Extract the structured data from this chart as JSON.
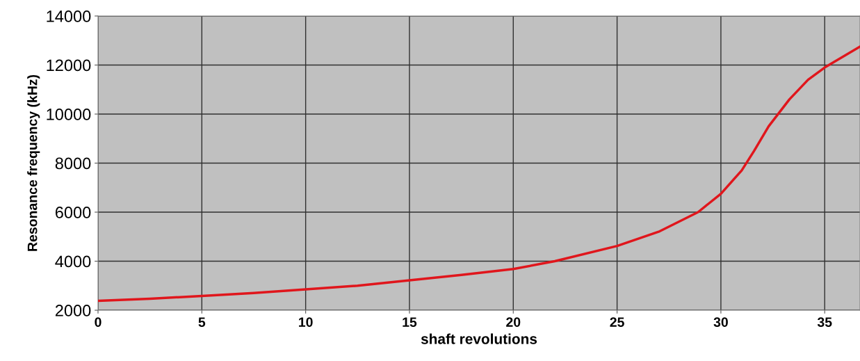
{
  "chart_data": {
    "type": "line",
    "xlabel": "shaft revolutions",
    "ylabel": "Resonance frequency (kHz)",
    "x": [
      0,
      2.5,
      5,
      7.5,
      10,
      12.5,
      15,
      17.5,
      20,
      22,
      25,
      27,
      28.9,
      30,
      31,
      31.6,
      32.3,
      33.3,
      34.2,
      35,
      36.7
    ],
    "series": [
      {
        "color": "#e0161c",
        "values": [
          2380,
          2470,
          2580,
          2700,
          2850,
          3000,
          3220,
          3440,
          3680,
          4000,
          4620,
          5200,
          6000,
          6750,
          7700,
          8500,
          9500,
          10600,
          11400,
          11900,
          12750
        ]
      }
    ],
    "xlim": [
      0,
      36.7
    ],
    "xticks": [
      0,
      5,
      10,
      15,
      20,
      25,
      30,
      35
    ],
    "ylim": [
      2000,
      14000
    ],
    "yticks": [
      2000,
      4000,
      6000,
      8000,
      10000,
      12000,
      14000
    ],
    "grid": true,
    "marker": "none",
    "line_style": "solid"
  }
}
